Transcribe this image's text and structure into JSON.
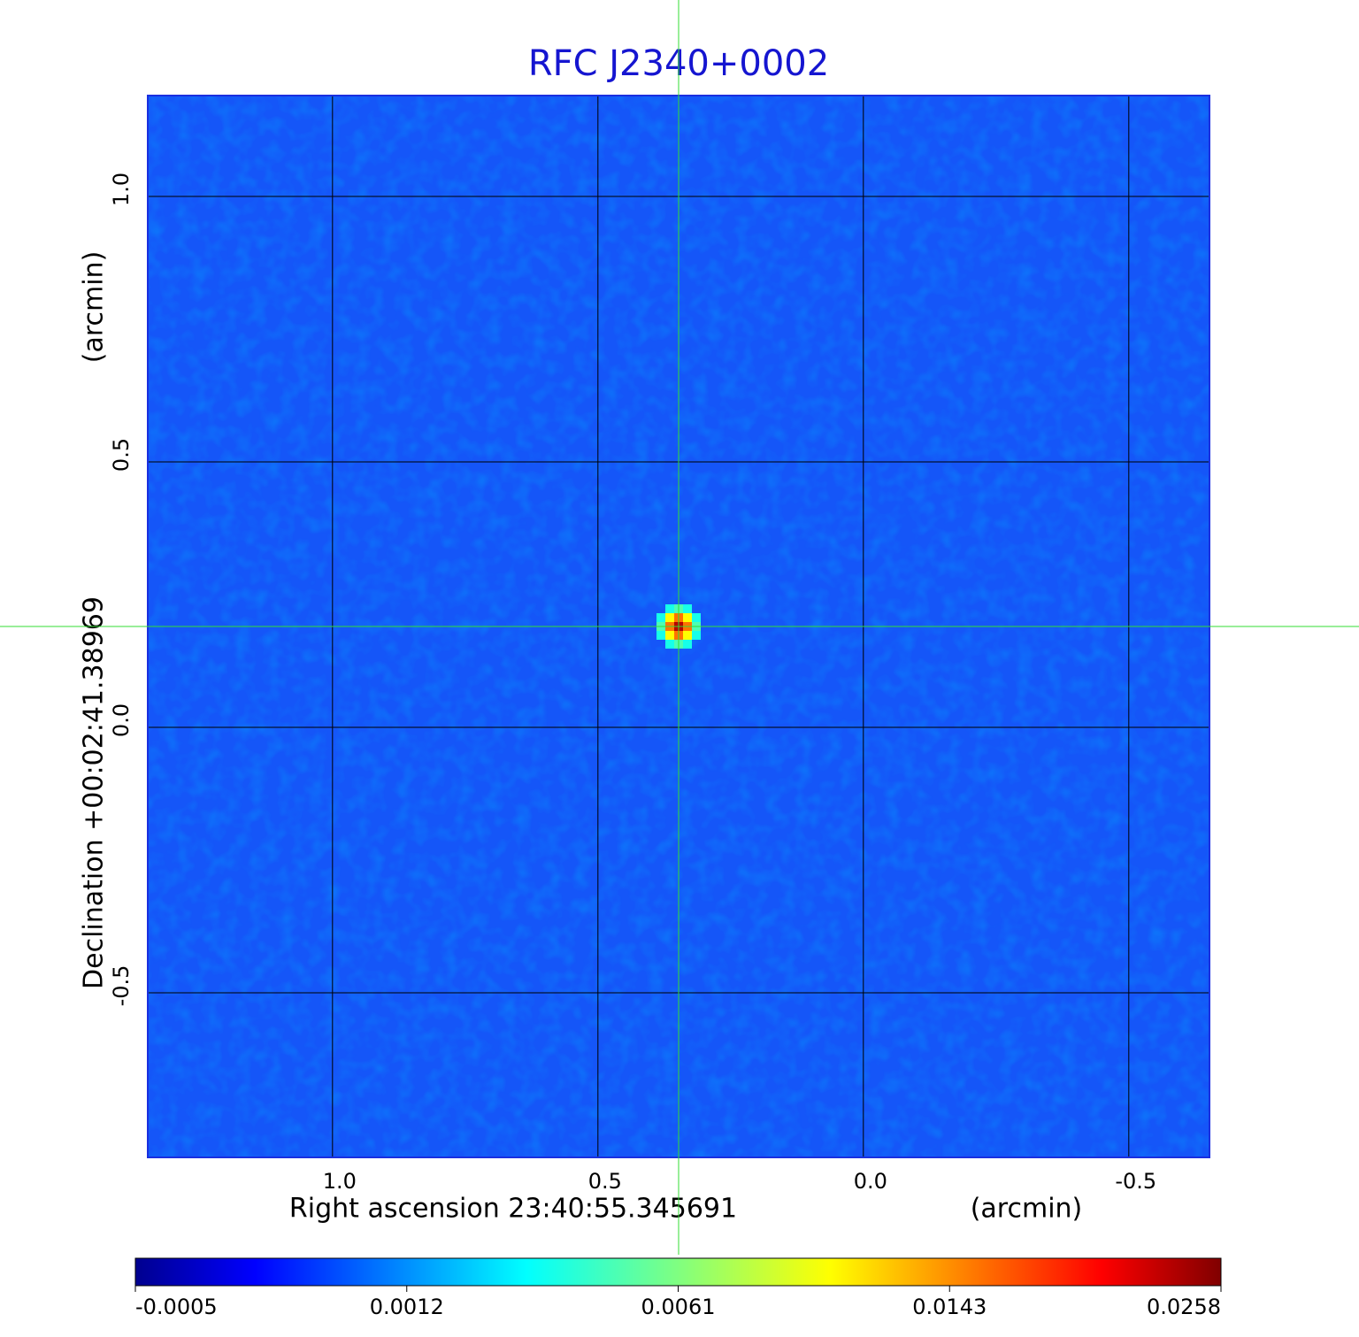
{
  "chart_data": {
    "type": "image",
    "title": "RFC J2340+0002",
    "x_label": "Right ascension  23:40:55.345691",
    "x_unit": "(arcmin)",
    "y_label": "Declination  +00:02:41.38969",
    "y_unit": "(arcmin)",
    "xlim": [
      1.348,
      -0.652
    ],
    "ylim": [
      -0.81,
      1.19
    ],
    "xticks": [
      {
        "value": 1,
        "label": "1.0"
      },
      0.5,
      {
        "value": 0,
        "label": "0.0"
      },
      -0.5
    ],
    "yticks": [
      -0.5,
      {
        "value": 0,
        "label": "0.0"
      },
      0.5,
      {
        "value": 1,
        "label": "1.0"
      }
    ],
    "grid": true,
    "crosshair": {
      "x": 0.348,
      "y": 0.19
    },
    "source": {
      "x": 0.348,
      "y": 0.19,
      "peak": 0.0258
    },
    "colorbar_ticks": [
      -0.0005,
      0.0012,
      0.0061,
      0.0143,
      0.0258
    ]
  }
}
